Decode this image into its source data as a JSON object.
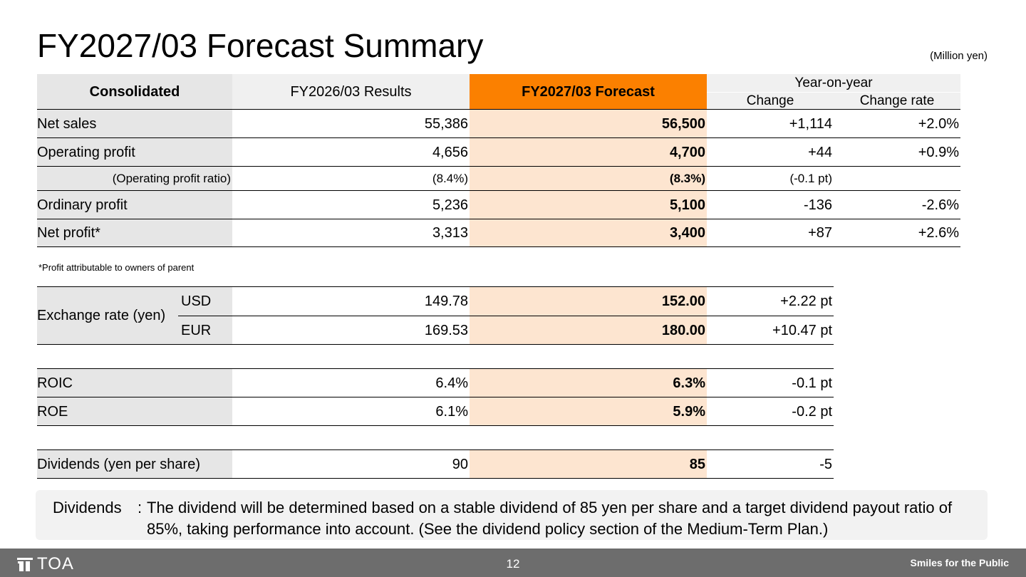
{
  "slide": {
    "title": "FY2027/03 Forecast Summary",
    "unit": "(Million yen)",
    "page_number": "12"
  },
  "table": {
    "headers": {
      "consolidated": "Consolidated",
      "results": "FY2026/03 Results",
      "forecast": "FY2027/03 Forecast",
      "yoy": "Year-on-year",
      "change": "Change",
      "change_rate": "Change rate"
    },
    "rows": [
      {
        "label": "Net sales",
        "results": "55,386",
        "forecast": "56,500",
        "change": "+1,114",
        "rate": "+2.0%"
      },
      {
        "label": "Operating profit",
        "results": "4,656",
        "forecast": "4,700",
        "change": "+44",
        "rate": "+0.9%"
      },
      {
        "label": "(Operating profit ratio)",
        "results": "(8.4%)",
        "forecast": "(8.3%)",
        "change": "(-0.1 pt)",
        "rate": ""
      },
      {
        "label": "Ordinary profit",
        "results": "5,236",
        "forecast": "5,100",
        "change": "-136",
        "rate": "-2.6%"
      },
      {
        "label": "Net profit*",
        "results": "3,313",
        "forecast": "3,400",
        "change": "+87",
        "rate": "+2.6%"
      }
    ],
    "footnote": "*Profit attributable to owners of parent"
  },
  "exchange": {
    "label": "Exchange rate (yen)",
    "rows": [
      {
        "currency": "USD",
        "results": "149.78",
        "forecast": "152.00",
        "change": "+2.22 pt"
      },
      {
        "currency": "EUR",
        "results": "169.53",
        "forecast": "180.00",
        "change": "+10.47 pt"
      }
    ]
  },
  "ratios": [
    {
      "label": "ROIC",
      "results": "6.4%",
      "forecast": "6.3%",
      "change": "-0.1 pt"
    },
    {
      "label": "ROE",
      "results": "6.1%",
      "forecast": "5.9%",
      "change": "-0.2 pt"
    }
  ],
  "dividends": {
    "label": "Dividends (yen per share)",
    "results": "90",
    "forecast": "85",
    "change": "-5"
  },
  "note": {
    "label": "Dividends",
    "colon": ":",
    "text": "The dividend will be determined based on a stable dividend of 85 yen per share and a target dividend payout ratio of 85%, taking performance into account. (See the dividend policy section of the Medium-Term Plan.)"
  },
  "footer": {
    "logo_text": "TOA",
    "tagline": "Smiles for the Public"
  },
  "colors": {
    "forecast_header": "#fb8000",
    "forecast_column": "#fde5d0",
    "label_column": "#e6e6e6",
    "footer_bar": "#6d6d6d"
  }
}
